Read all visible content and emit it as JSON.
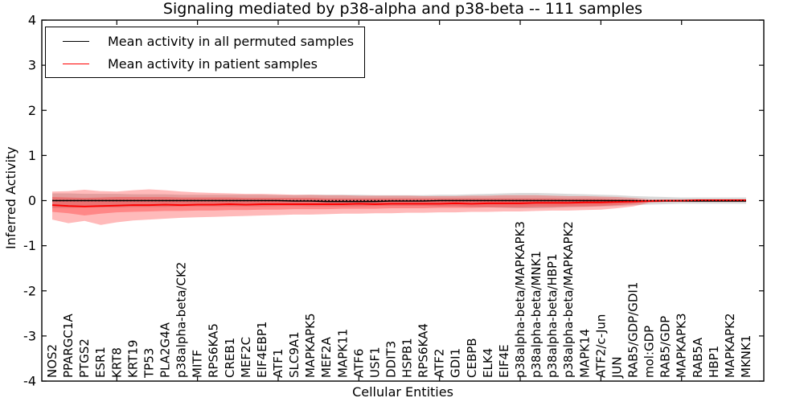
{
  "title": "Signaling mediated by p38-alpha and p38-beta -- 111 samples",
  "axes": {
    "xlabel": "Cellular Entities",
    "ylabel": "Inferred Activity",
    "yticks": {
      "labels": [
        "4",
        "3",
        "2",
        "1",
        "0",
        "-1",
        "-2",
        "-3",
        "-4"
      ],
      "values": [
        4,
        3,
        2,
        1,
        0,
        -1,
        -2,
        -3,
        -4
      ]
    }
  },
  "legend": {
    "items": [
      {
        "label": "Mean activity in all permuted samples",
        "color": "#000000"
      },
      {
        "label": "Mean activity in patient samples",
        "color": "#ff0000"
      }
    ]
  },
  "chart_data": {
    "type": "line",
    "title": "Signaling mediated by p38-alpha and p38-beta -- 111 samples",
    "xlabel": "Cellular Entities",
    "ylabel": "Inferred Activity",
    "ylim": [
      -4,
      4
    ],
    "grid": false,
    "legend_position": "upper left",
    "sample_count": 111,
    "categories": [
      "NOS2",
      "PPARGC1A",
      "PTGS2",
      "ESR1",
      "KRT8",
      "KRT19",
      "TP53",
      "PLA2G4A",
      "p38alpha-beta/CK2",
      "MITF",
      "RPS6KA5",
      "CREB1",
      "MEF2C",
      "EIF4EBP1",
      "ATF1",
      "SLC9A1",
      "MAPKAPK5",
      "MEF2A",
      "MAPK11",
      "ATF6",
      "USF1",
      "DDIT3",
      "HSPB1",
      "RPS6KA4",
      "ATF2",
      "GDI1",
      "CEBPB",
      "ELK4",
      "EIF4E",
      "p38alpha-beta/MAPKAPK3",
      "p38alpha-beta/MNK1",
      "p38alpha-beta/HBP1",
      "p38alpha-beta/MAPKAPK2",
      "MAPK14",
      "ATF2/c-Jun",
      "JUN",
      "RAB5/GDP/GDI1",
      "mol:GDP",
      "RAB5/GDP",
      "MAPKAPK3",
      "RAB5A",
      "HBP1",
      "MAPKAPK2",
      "MKNK1"
    ],
    "x_tick_indices": [
      4,
      9,
      14,
      19,
      24,
      29,
      34,
      39
    ],
    "zero_line": {
      "value": 0,
      "style": "dotted",
      "color": "#000000"
    },
    "series": [
      {
        "name": "Mean activity in all permuted samples",
        "color": "#000000",
        "values": [
          0,
          0,
          0,
          0,
          0,
          0,
          0,
          0,
          0,
          0,
          0,
          0,
          0,
          0,
          0,
          -0.01,
          -0.01,
          -0.02,
          -0.02,
          -0.02,
          -0.02,
          -0.01,
          -0.01,
          -0.01,
          0,
          0,
          0,
          0,
          0,
          0,
          0,
          0,
          0,
          0,
          0,
          0,
          0,
          -0.01,
          -0.01,
          -0.01,
          -0.01,
          -0.01,
          -0.01,
          -0.01
        ],
        "band_upper": [
          0.16,
          0.16,
          0.15,
          0.15,
          0.15,
          0.14,
          0.14,
          0.14,
          0.13,
          0.13,
          0.13,
          0.13,
          0.13,
          0.13,
          0.12,
          0.12,
          0.13,
          0.13,
          0.13,
          0.13,
          0.12,
          0.12,
          0.12,
          0.12,
          0.13,
          0.13,
          0.14,
          0.15,
          0.16,
          0.17,
          0.17,
          0.16,
          0.15,
          0.14,
          0.13,
          0.12,
          0.1,
          0.09,
          0.08,
          0.07,
          0.07,
          0.07,
          0.07,
          0.07
        ],
        "band_lower": [
          -0.16,
          -0.16,
          -0.15,
          -0.15,
          -0.15,
          -0.14,
          -0.14,
          -0.14,
          -0.13,
          -0.13,
          -0.13,
          -0.13,
          -0.13,
          -0.13,
          -0.12,
          -0.12,
          -0.13,
          -0.13,
          -0.13,
          -0.13,
          -0.12,
          -0.12,
          -0.12,
          -0.12,
          -0.13,
          -0.13,
          -0.14,
          -0.15,
          -0.16,
          -0.17,
          -0.17,
          -0.16,
          -0.15,
          -0.14,
          -0.13,
          -0.12,
          -0.1,
          -0.09,
          -0.08,
          -0.07,
          -0.07,
          -0.07,
          -0.07,
          -0.07
        ],
        "band_color": "rgba(130,130,130,0.30)"
      },
      {
        "name": "Mean activity in patient samples",
        "color": "#ff0000",
        "values": [
          -0.1,
          -0.12,
          -0.13,
          -0.12,
          -0.11,
          -0.1,
          -0.1,
          -0.09,
          -0.1,
          -0.09,
          -0.09,
          -0.08,
          -0.09,
          -0.08,
          -0.08,
          -0.08,
          -0.08,
          -0.08,
          -0.08,
          -0.07,
          -0.08,
          -0.07,
          -0.07,
          -0.07,
          -0.07,
          -0.06,
          -0.07,
          -0.06,
          -0.06,
          -0.06,
          -0.05,
          -0.05,
          -0.05,
          -0.04,
          -0.04,
          -0.03,
          -0.02,
          -0.01,
          0,
          0,
          0.01,
          0.01,
          0.01,
          0.01
        ],
        "band_outer_upper": [
          0.2,
          0.21,
          0.24,
          0.21,
          0.2,
          0.23,
          0.25,
          0.23,
          0.2,
          0.18,
          0.17,
          0.16,
          0.15,
          0.15,
          0.14,
          0.13,
          0.13,
          0.12,
          0.12,
          0.11,
          0.11,
          0.11,
          0.11,
          0.1,
          0.1,
          0.1,
          0.11,
          0.11,
          0.12,
          0.12,
          0.12,
          0.11,
          0.1,
          0.1,
          0.09,
          0.08,
          0.06,
          0.03,
          0.02,
          0.02,
          0.02,
          0.02,
          0.02,
          0.02
        ],
        "band_outer_lower": [
          -0.42,
          -0.5,
          -0.45,
          -0.54,
          -0.48,
          -0.44,
          -0.42,
          -0.4,
          -0.38,
          -0.37,
          -0.36,
          -0.35,
          -0.34,
          -0.33,
          -0.32,
          -0.31,
          -0.31,
          -0.3,
          -0.29,
          -0.29,
          -0.28,
          -0.28,
          -0.27,
          -0.27,
          -0.26,
          -0.26,
          -0.25,
          -0.25,
          -0.24,
          -0.24,
          -0.23,
          -0.22,
          -0.22,
          -0.21,
          -0.2,
          -0.17,
          -0.13,
          -0.05,
          -0.03,
          -0.03,
          -0.03,
          -0.03,
          -0.03,
          -0.03
        ],
        "band_inner_upper": [
          0.08,
          0.07,
          0.06,
          0.07,
          0.08,
          0.08,
          0.08,
          0.08,
          0.07,
          0.07,
          0.07,
          0.07,
          0.06,
          0.06,
          0.06,
          0.06,
          0.06,
          0.05,
          0.05,
          0.05,
          0.05,
          0.05,
          0.05,
          0.05,
          0.05,
          0.05,
          0.05,
          0.05,
          0.05,
          0.05,
          0.05,
          0.05,
          0.04,
          0.04,
          0.04,
          0.03,
          0.02,
          0.01,
          0.01,
          0.01,
          0.01,
          0.01,
          0.01,
          0.01
        ],
        "band_inner_lower": [
          -0.25,
          -0.28,
          -0.33,
          -0.29,
          -0.26,
          -0.25,
          -0.24,
          -0.23,
          -0.23,
          -0.22,
          -0.22,
          -0.21,
          -0.21,
          -0.2,
          -0.2,
          -0.19,
          -0.19,
          -0.19,
          -0.18,
          -0.18,
          -0.18,
          -0.17,
          -0.17,
          -0.17,
          -0.16,
          -0.16,
          -0.16,
          -0.15,
          -0.15,
          -0.15,
          -0.14,
          -0.14,
          -0.13,
          -0.13,
          -0.12,
          -0.1,
          -0.07,
          -0.03,
          -0.02,
          -0.02,
          -0.02,
          -0.02,
          -0.02,
          -0.02
        ],
        "band_color": "rgba(255,0,0,0.27)"
      }
    ]
  }
}
